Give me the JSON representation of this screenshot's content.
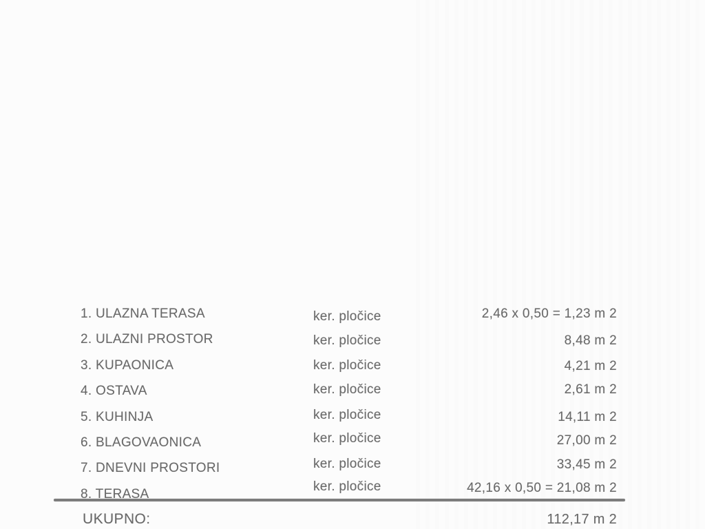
{
  "table": {
    "rows": [
      {
        "label": "1. ULAZNA TERASA",
        "material": "ker. pločice",
        "value": "2,46 x 0,50 = 1,23 m 2"
      },
      {
        "label": "2. ULAZNI PROSTOR",
        "material": "ker. pločice",
        "value": "8,48 m 2"
      },
      {
        "label": "3. KUPAONICA",
        "material": "ker. pločice",
        "value": "4,21 m 2"
      },
      {
        "label": "4. OSTAVA",
        "material": "ker. pločice",
        "value": "2,61 m 2"
      },
      {
        "label": "5. KUHINJA",
        "material": "ker. pločice",
        "value": "14,11 m 2"
      },
      {
        "label": "6. BLAGOVAONICA",
        "material": "ker. pločice",
        "value": "27,00 m 2"
      },
      {
        "label": "7. DNEVNI PROSTORI",
        "material": "ker. pločice",
        "value": "33,45 m 2"
      },
      {
        "label": "8. TERASA",
        "material": "ker. pločice",
        "value": "42,16 x 0,50 = 21,08 m 2"
      }
    ],
    "total": {
      "label": "UKUPNO:",
      "value": "112,17 m 2"
    }
  },
  "colors": {
    "background": "#fcfcfc",
    "text": "#686868",
    "divider": "#7c7c7c"
  }
}
